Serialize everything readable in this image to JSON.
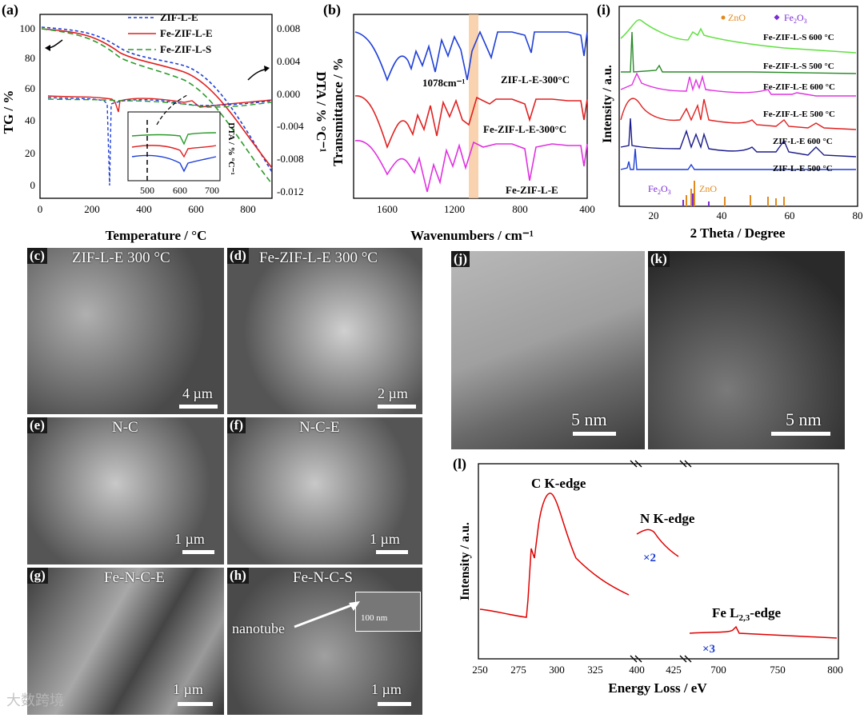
{
  "panels": {
    "a": {
      "label": "(a)",
      "xlabel": "Temperature / °C",
      "ylabel_left": "TG / %",
      "ylabel_right": "DTA / % °C⁻¹",
      "inset_ylabel": "DTA / % °C⁻¹",
      "xticks": [
        "0",
        "200",
        "400",
        "600",
        "800"
      ],
      "yticks_left": [
        "0",
        "20",
        "40",
        "60",
        "80",
        "100"
      ],
      "yticks_right": [
        "0.008",
        "0.004",
        "0.000",
        "-0.004",
        "-0.008",
        "-0.012"
      ],
      "inset_xticks": [
        "500",
        "600",
        "700"
      ],
      "legend": [
        "ZIF-L-E",
        "Fe-ZIF-L-E",
        "Fe-ZIF-L-S"
      ],
      "colors": {
        "ZIF-L-E": "#1f3fd6",
        "Fe-ZIF-L-E": "#e02020",
        "Fe-ZIF-L-S": "#2a9a2a"
      }
    },
    "b": {
      "label": "(b)",
      "xlabel": "Wavenumbers / cm⁻¹",
      "ylabel": "Transmittance / %",
      "xticks": [
        "1600",
        "1200",
        "800",
        "400"
      ],
      "annotation": "1078cm⁻¹",
      "curve_labels": [
        "ZIF-L-E-300°C",
        "Fe-ZIF-L-E-300°C",
        "Fe-ZIF-L-E"
      ]
    },
    "i": {
      "label": "(i)",
      "xlabel": "2 Theta / Degree",
      "ylabel": "Intensity / a.u.",
      "xticks": [
        "20",
        "40",
        "60",
        "80"
      ],
      "legend_zno": "ZnO",
      "legend_fe2o3": "Fe",
      "legend_fe2o3_sub": "2",
      "legend_fe2o3_o": "O",
      "legend_fe2o3_sub2": "3",
      "curve_labels": [
        "Fe-ZIF-L-S  600 °C",
        "Fe-ZIF-L-S  500 °C",
        "Fe-ZIF-L-E  600 °C",
        "Fe-ZIF-L-E  500 °C",
        "ZIF-L-E  600 °C",
        "ZIF-L-E  500 °C"
      ],
      "ref_fe2o3": "Fe",
      "ref_fe2o3_tail": "O",
      "ref_zno": "ZnO"
    },
    "l": {
      "label": "(l)",
      "xlabel": "Energy Loss / eV",
      "ylabel": "Intensity / a.u.",
      "xticks": [
        "250",
        "275",
        "300",
        "325",
        "400",
        "425",
        "700",
        "750",
        "800"
      ],
      "ck": "C K-edge",
      "nk": "N K-edge",
      "fe": "Fe L",
      "fe_sub": "2,3",
      "fe_tail": "-edge",
      "x2": "×2",
      "x3": "×3"
    },
    "images": {
      "c": {
        "label": "(c)",
        "title": "ZIF-L-E 300 °C",
        "scale": "4 µm"
      },
      "d": {
        "label": "(d)",
        "title": "Fe-ZIF-L-E 300 °C",
        "scale": "2 µm"
      },
      "e": {
        "label": "(e)",
        "title": "N-C",
        "scale": "1 µm"
      },
      "f": {
        "label": "(f)",
        "title": "N-C-E",
        "scale": "1 µm"
      },
      "g": {
        "label": "(g)",
        "title": "Fe-N-C-E",
        "scale": "1 µm"
      },
      "h": {
        "label": "(h)",
        "title": "Fe-N-C-S",
        "scale": "1 µm",
        "nanotube": "nanotube",
        "inset_scale": "100 nm"
      },
      "j": {
        "label": "(j)",
        "scale": "5 nm"
      },
      "k": {
        "label": "(k)",
        "scale": "5 nm"
      }
    }
  },
  "watermark": "大数跨境"
}
